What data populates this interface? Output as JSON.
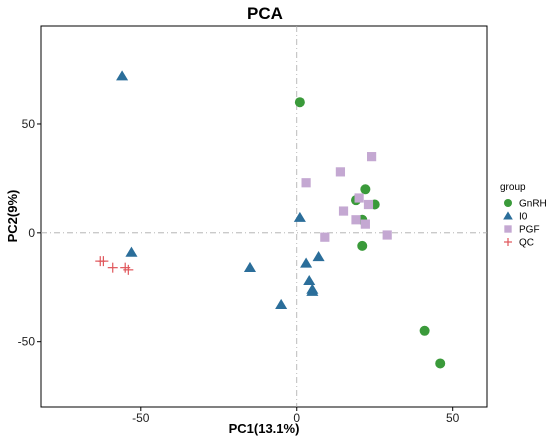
{
  "chart_data": {
    "type": "scatter",
    "title": "PCA",
    "xlabel": "PC1(13.1%)",
    "ylabel": "PC2(9%)",
    "xlim": [
      -82,
      61
    ],
    "ylim": [
      -80,
      95
    ],
    "xticks": [
      -50,
      0,
      50
    ],
    "yticks": [
      -50,
      0,
      50
    ],
    "grid": false,
    "reference_lines": {
      "x": 0,
      "y": 0
    },
    "legend": {
      "title": "group",
      "placement": "right",
      "entries": [
        "GnRH",
        "I0",
        "PGF",
        "QC"
      ]
    },
    "series": [
      {
        "name": "GnRH",
        "marker": "circle",
        "color": "#3a9a3a",
        "points": [
          [
            1,
            60
          ],
          [
            22,
            20
          ],
          [
            19,
            15
          ],
          [
            25,
            13
          ],
          [
            21,
            6
          ],
          [
            21,
            -6
          ],
          [
            41,
            -45
          ],
          [
            46,
            -60
          ]
        ]
      },
      {
        "name": "I0",
        "marker": "triangle",
        "color": "#2b6e9a",
        "points": [
          [
            -56,
            72
          ],
          [
            1,
            7
          ],
          [
            -53,
            -9
          ],
          [
            -15,
            -16
          ],
          [
            3,
            -14
          ],
          [
            7,
            -11
          ],
          [
            4,
            -22
          ],
          [
            5,
            -26
          ],
          [
            5,
            -27
          ],
          [
            -5,
            -33
          ]
        ]
      },
      {
        "name": "PGF",
        "marker": "square",
        "color": "#c4a8d2",
        "points": [
          [
            24,
            35
          ],
          [
            14,
            28
          ],
          [
            3,
            23
          ],
          [
            20,
            16
          ],
          [
            23,
            13
          ],
          [
            15,
            10
          ],
          [
            19,
            6
          ],
          [
            22,
            4
          ],
          [
            9,
            -2
          ],
          [
            29,
            -1
          ]
        ]
      },
      {
        "name": "QC",
        "marker": "plus",
        "color": "#e0555a",
        "points": [
          [
            -63,
            -13
          ],
          [
            -62,
            -13
          ],
          [
            -59,
            -16
          ],
          [
            -55,
            -16
          ],
          [
            -54,
            -17
          ]
        ]
      }
    ]
  }
}
